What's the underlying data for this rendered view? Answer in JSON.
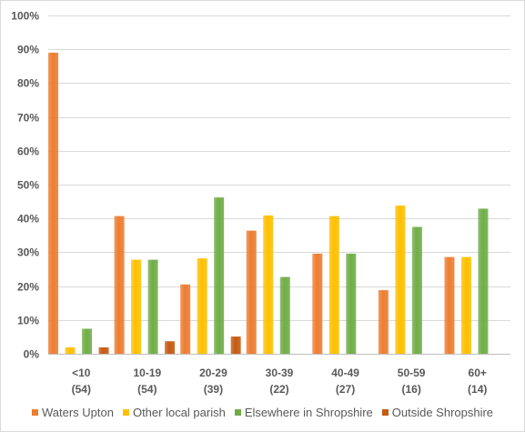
{
  "chart_data": {
    "type": "bar",
    "categories": [
      {
        "label": "<10",
        "sub": "(54)"
      },
      {
        "label": "10-19",
        "sub": "(54)"
      },
      {
        "label": "20-29",
        "sub": "(39)"
      },
      {
        "label": "30-39",
        "sub": "(22)"
      },
      {
        "label": "40-49",
        "sub": "(27)"
      },
      {
        "label": "50-59",
        "sub": "(16)"
      },
      {
        "label": "60+",
        "sub": "(14)"
      }
    ],
    "series": [
      {
        "name": "Waters Upton",
        "color": "#ED7D31",
        "values": [
          89,
          40.7,
          20.5,
          36.4,
          29.6,
          18.8,
          28.6
        ]
      },
      {
        "name": "Other local parish",
        "color": "#FFC000",
        "values": [
          1.9,
          27.8,
          28.2,
          40.9,
          40.7,
          43.8,
          28.6
        ]
      },
      {
        "name": "Elsewhere in Shropshire",
        "color": "#70AD47",
        "values": [
          7.4,
          27.8,
          46.2,
          22.7,
          29.6,
          37.5,
          42.9
        ]
      },
      {
        "name": "Outside Shropshire",
        "color": "#C55A11",
        "values": [
          1.9,
          3.7,
          5.1,
          0,
          0,
          0,
          0
        ]
      }
    ],
    "ylim": [
      0,
      100
    ],
    "yticks": [
      "0%",
      "10%",
      "20%",
      "30%",
      "40%",
      "50%",
      "60%",
      "70%",
      "80%",
      "90%",
      "100%"
    ],
    "grid": true,
    "legend_position": "bottom"
  }
}
